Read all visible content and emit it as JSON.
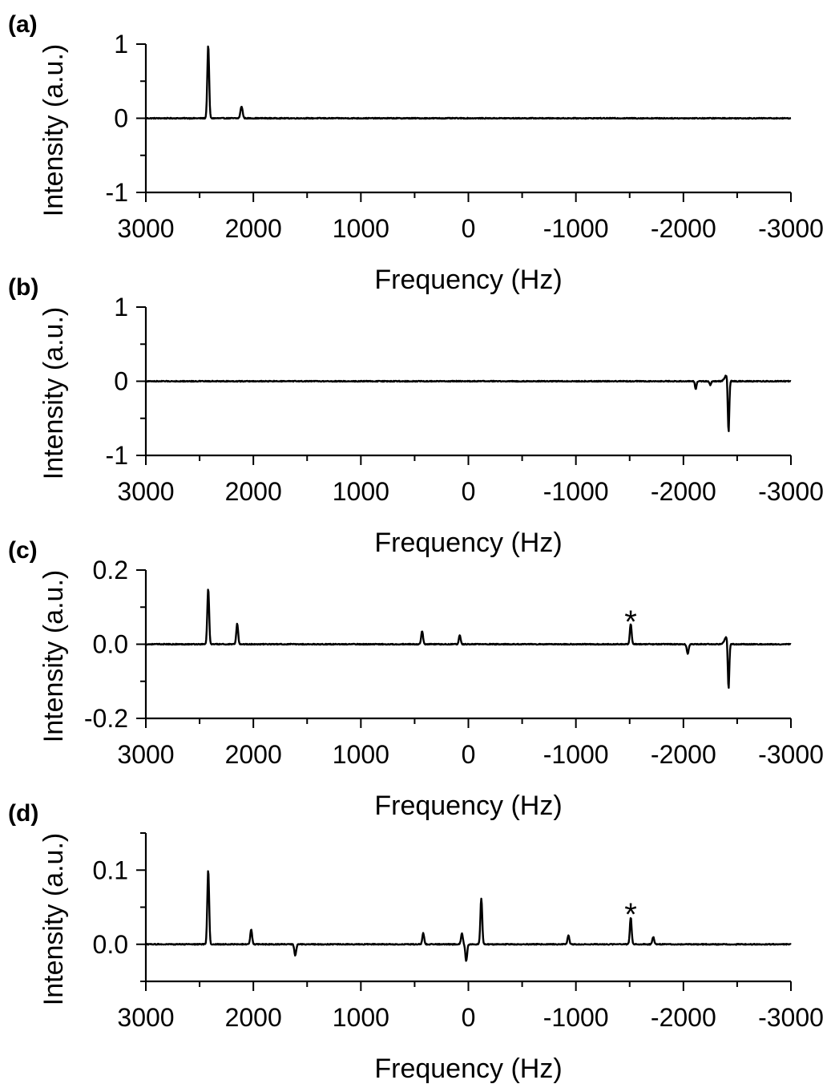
{
  "chart_data": [
    {
      "type": "line",
      "panel": "(a)",
      "xlabel": "Frequency (Hz)",
      "ylabel": "Intensity (a.u.)",
      "xlim": [
        3000,
        -3000
      ],
      "ylim": [
        -1,
        1
      ],
      "xticks": [
        "3000",
        "2000",
        "1000",
        "0",
        "-1000",
        "-2000",
        "-3000"
      ],
      "yticks": [
        "-1",
        "0",
        "1"
      ],
      "noise": 0.006,
      "baseline": 0,
      "peaks": [
        {
          "x": 2420,
          "y": 0.98,
          "w": 12
        },
        {
          "x": 2110,
          "y": 0.16,
          "w": 14
        }
      ],
      "annotations": []
    },
    {
      "type": "line",
      "panel": "(b)",
      "xlabel": "Frequency (Hz)",
      "ylabel": "Intensity (a.u.)",
      "xlim": [
        3000,
        -3000
      ],
      "ylim": [
        -1,
        1
      ],
      "xticks": [
        "3000",
        "2000",
        "1000",
        "0",
        "-1000",
        "-2000",
        "-3000"
      ],
      "yticks": [
        "-1",
        "0",
        "1"
      ],
      "noise": 0.006,
      "baseline": 0,
      "peaks": [
        {
          "x": -2420,
          "y": -0.72,
          "w": 10
        },
        {
          "x": -2400,
          "y": 0.08,
          "w": 25
        },
        {
          "x": -2115,
          "y": -0.11,
          "w": 10
        },
        {
          "x": -2250,
          "y": -0.05,
          "w": 10
        }
      ],
      "annotations": []
    },
    {
      "type": "line",
      "panel": "(c)",
      "xlabel": "Frequency (Hz)",
      "ylabel": "Intensity (a.u.)",
      "xlim": [
        3000,
        -3000
      ],
      "ylim": [
        -0.2,
        0.2
      ],
      "xticks": [
        "3000",
        "2000",
        "1000",
        "0",
        "-1000",
        "-2000",
        "-3000"
      ],
      "yticks": [
        "-0.2",
        "0.0",
        "0.2"
      ],
      "noise": 0.006,
      "baseline": 0,
      "peaks": [
        {
          "x": 2420,
          "y": 0.15,
          "w": 12
        },
        {
          "x": 2150,
          "y": 0.055,
          "w": 12
        },
        {
          "x": 430,
          "y": 0.035,
          "w": 12
        },
        {
          "x": 80,
          "y": 0.025,
          "w": 12
        },
        {
          "x": -1510,
          "y": 0.055,
          "w": 12
        },
        {
          "x": -2040,
          "y": -0.025,
          "w": 12
        },
        {
          "x": -2400,
          "y": 0.02,
          "w": 25
        },
        {
          "x": -2420,
          "y": -0.13,
          "w": 10
        }
      ],
      "annotations": [
        {
          "text": "*",
          "x": -1510,
          "y": 0.07
        }
      ]
    },
    {
      "type": "line",
      "panel": "(d)",
      "xlabel": "Frequency (Hz)",
      "ylabel": "Intensity (a.u.)",
      "xlim": [
        3000,
        -3000
      ],
      "ylim": [
        -0.05,
        0.15
      ],
      "xticks": [
        "3000",
        "2000",
        "1000",
        "0",
        "-1000",
        "-2000",
        "-3000"
      ],
      "yticks": [
        "0.0",
        "0.1"
      ],
      "ytick_values": [
        0.0,
        0.1
      ],
      "noise": 0.006,
      "baseline": 0,
      "peaks": [
        {
          "x": 2420,
          "y": 0.1,
          "w": 12
        },
        {
          "x": 2020,
          "y": 0.02,
          "w": 12
        },
        {
          "x": 1610,
          "y": -0.015,
          "w": 12
        },
        {
          "x": 420,
          "y": 0.015,
          "w": 12
        },
        {
          "x": 20,
          "y": -0.022,
          "w": 12
        },
        {
          "x": -120,
          "y": 0.062,
          "w": 12
        },
        {
          "x": 60,
          "y": 0.015,
          "w": 12
        },
        {
          "x": -930,
          "y": 0.012,
          "w": 12
        },
        {
          "x": -1510,
          "y": 0.036,
          "w": 12
        },
        {
          "x": -1720,
          "y": 0.01,
          "w": 12
        }
      ],
      "annotations": [
        {
          "text": "*",
          "x": -1510,
          "y": 0.045
        }
      ]
    }
  ]
}
